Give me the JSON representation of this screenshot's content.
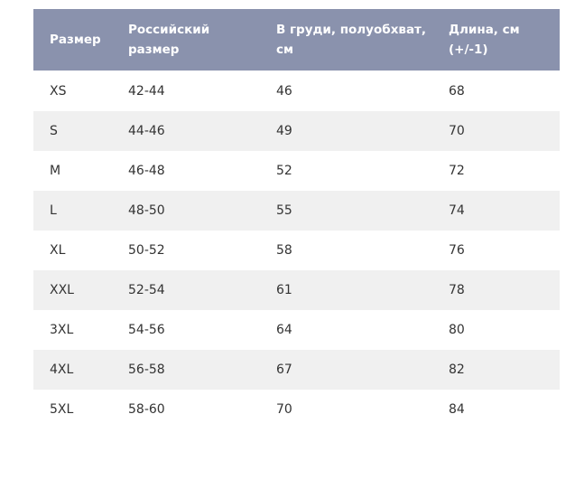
{
  "table": {
    "headers": [
      {
        "line1": "Размер",
        "line2": ""
      },
      {
        "line1": "Российский",
        "line2": "размер"
      },
      {
        "line1": "В груди, полуобхват,",
        "line2": "см"
      },
      {
        "line1": "Длина, см",
        "line2": "(+/-1)"
      }
    ],
    "rows": [
      [
        "XS",
        "42-44",
        "46",
        "68"
      ],
      [
        "S",
        "44-46",
        "49",
        "70"
      ],
      [
        "M",
        "46-48",
        "52",
        "72"
      ],
      [
        "L",
        "48-50",
        "55",
        "74"
      ],
      [
        "XL",
        "50-52",
        "58",
        "76"
      ],
      [
        "XXL",
        "52-54",
        "61",
        "78"
      ],
      [
        "3XL",
        "54-56",
        "64",
        "80"
      ],
      [
        "4XL",
        "56-58",
        "67",
        "82"
      ],
      [
        "5XL",
        "58-60",
        "70",
        "84"
      ]
    ]
  },
  "colors": {
    "header_background": "#8a92ad",
    "header_text": "#ffffff",
    "stripe_background": "#f0f0f0",
    "cell_text": "#333333"
  }
}
